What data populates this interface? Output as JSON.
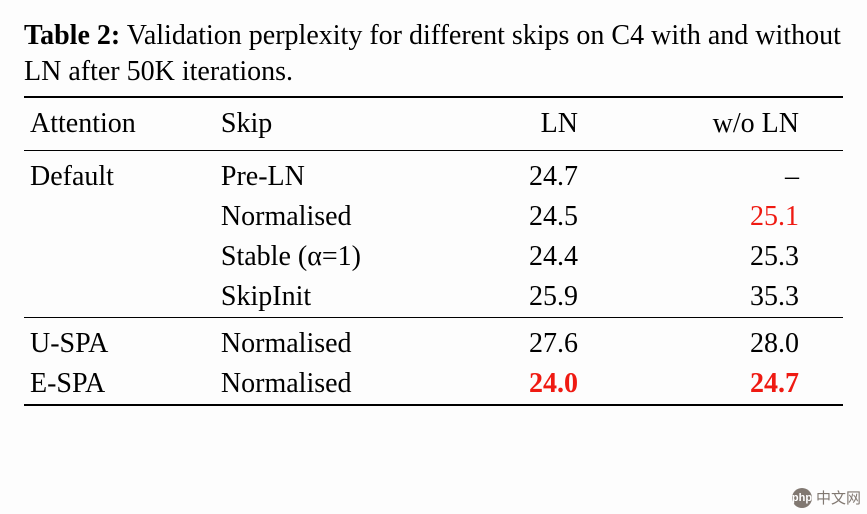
{
  "caption": {
    "label": "Table 2:",
    "text": " Validation perplexity for different skips on C4 with and without LN after 50K iterations."
  },
  "columns": [
    {
      "key": "attention",
      "label": "Attention",
      "align": "left"
    },
    {
      "key": "skip",
      "label": "Skip",
      "align": "left"
    },
    {
      "key": "ln",
      "label": "LN",
      "align": "right"
    },
    {
      "key": "woln",
      "label": "w/o LN",
      "align": "right"
    }
  ],
  "groups": [
    {
      "rows": [
        {
          "attention": "Default",
          "skip": "Pre-LN",
          "ln": "24.7",
          "woln": "–"
        },
        {
          "attention": "",
          "skip": "Normalised",
          "ln": "24.5",
          "woln": "25.1",
          "woln_highlight": true
        },
        {
          "attention": "",
          "skip": "Stable (α=1)",
          "ln": "24.4",
          "woln": "25.3"
        },
        {
          "attention": "",
          "skip": "SkipInit",
          "ln": "25.9",
          "woln": "35.3"
        }
      ]
    },
    {
      "rows": [
        {
          "attention": "U-SPA",
          "skip": "Normalised",
          "ln": "27.6",
          "woln": "28.0"
        },
        {
          "attention": "E-SPA",
          "skip": "Normalised",
          "ln": "24.0",
          "woln": "24.7",
          "ln_highlight": true,
          "ln_bold": true,
          "woln_highlight": true,
          "woln_bold": true
        }
      ]
    }
  ],
  "colors": {
    "highlight": "#ef1a12",
    "text": "#000000",
    "rule": "#000000",
    "background": "#fdfdfd"
  },
  "fonts": {
    "family": "Times New Roman",
    "body_size_pt": 21,
    "caption_size_pt": 21
  },
  "watermark": {
    "logo_text": "php",
    "text": "中文网"
  }
}
